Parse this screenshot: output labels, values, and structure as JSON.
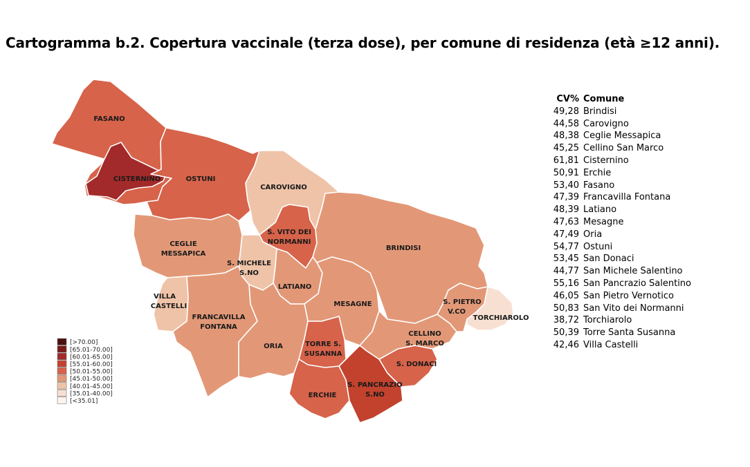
{
  "title": "Cartogramma b.2. Copertura vaccinale (terza dose), per comune di residenza (età ≥12 anni).",
  "table": {
    "header": {
      "cv": "CV%",
      "comune": "Comune"
    },
    "rows": [
      {
        "cv": "49,28",
        "comune": "Brindisi"
      },
      {
        "cv": "44,58",
        "comune": "Carovigno"
      },
      {
        "cv": "48,38",
        "comune": "Ceglie Messapica"
      },
      {
        "cv": "45,25",
        "comune": "Cellino San Marco"
      },
      {
        "cv": "61,81",
        "comune": "Cisternino"
      },
      {
        "cv": "50,91",
        "comune": "Erchie"
      },
      {
        "cv": "53,40",
        "comune": "Fasano"
      },
      {
        "cv": "47,39",
        "comune": "Francavilla Fontana"
      },
      {
        "cv": "48,39",
        "comune": "Latiano"
      },
      {
        "cv": "47,63",
        "comune": "Mesagne"
      },
      {
        "cv": "47,49",
        "comune": "Oria"
      },
      {
        "cv": "54,77",
        "comune": "Ostuni"
      },
      {
        "cv": "53,45",
        "comune": "San Donaci"
      },
      {
        "cv": "44,77",
        "comune": "San Michele Salentino"
      },
      {
        "cv": "55,16",
        "comune": "San Pancrazio Salentino"
      },
      {
        "cv": "46,05",
        "comune": "San Pietro Vernotico"
      },
      {
        "cv": "50,83",
        "comune": "San Vito dei Normanni"
      },
      {
        "cv": "38,72",
        "comune": "Torchiarolo"
      },
      {
        "cv": "50,39",
        "comune": "Torre Santa Susanna"
      },
      {
        "cv": "42,46",
        "comune": "Villa Castelli"
      }
    ]
  },
  "legend": [
    {
      "label": "[>70.00]",
      "color": "#4a1010"
    },
    {
      "label": "[65.01-70.00]",
      "color": "#7a1a1a"
    },
    {
      "label": "[60.01-65.00]",
      "color": "#a32a2a"
    },
    {
      "label": "[55.01-60.00]",
      "color": "#c2422e"
    },
    {
      "label": "[50.01-55.00]",
      "color": "#d6634a"
    },
    {
      "label": "[45.01-50.00]",
      "color": "#e29877"
    },
    {
      "label": "[40.01-45.00]",
      "color": "#efc3a8"
    },
    {
      "label": "[35.01-40.00]",
      "color": "#f7e0d2"
    },
    {
      "label": "[<35.01]",
      "color": "#fdf4ee"
    }
  ],
  "regions": {
    "fasano": {
      "label": "FASANO",
      "cv": 53.4,
      "color": "#d6634a"
    },
    "cisternino": {
      "label": "CISTERNINO",
      "cv": 61.81,
      "color": "#a32a2a"
    },
    "ostuni": {
      "label": "OSTUNI",
      "cv": 54.77,
      "color": "#d6634a"
    },
    "carovigno": {
      "label": "CAROVIGNO",
      "cv": 44.58,
      "color": "#efc3a8"
    },
    "san_vito": {
      "label1": "S. VITO DEI",
      "label2": "NORMANNI",
      "cv": 50.83,
      "color": "#d6634a"
    },
    "brindisi": {
      "label": "BRINDISI",
      "cv": 49.28,
      "color": "#e29877"
    },
    "ceglie": {
      "label1": "CEGLIE",
      "label2": "MESSAPICA",
      "cv": 48.38,
      "color": "#e29877"
    },
    "san_michele": {
      "label1": "S. MICHELE",
      "label2": "S.NO",
      "cv": 44.77,
      "color": "#efc3a8"
    },
    "latiano": {
      "label": "LATIANO",
      "cv": 48.39,
      "color": "#e29877"
    },
    "mesagne": {
      "label": "MESAGNE",
      "cv": 47.63,
      "color": "#e29877"
    },
    "villa_castelli": {
      "label1": "VILLA",
      "label2": "CASTELLI",
      "cv": 42.46,
      "color": "#efc3a8"
    },
    "francavilla": {
      "label1": "FRANCAVILLA",
      "label2": "FONTANA",
      "cv": 47.39,
      "color": "#e29877"
    },
    "oria": {
      "label": "ORIA",
      "cv": 47.49,
      "color": "#e29877"
    },
    "torre_susanna": {
      "label1": "TORRE S.",
      "label2": "SUSANNA",
      "cv": 50.39,
      "color": "#d6634a"
    },
    "erchie": {
      "label": "ERCHIE",
      "cv": 50.91,
      "color": "#d6634a"
    },
    "san_pancrazio": {
      "label1": "S. PANCRAZIO",
      "label2": "S.NO",
      "cv": 55.16,
      "color": "#c2422e"
    },
    "san_donaci": {
      "label": "S. DONACI",
      "cv": 53.45,
      "color": "#d6634a"
    },
    "cellino": {
      "label1": "CELLINO",
      "label2": "S. MARCO",
      "cv": 45.25,
      "color": "#e29877"
    },
    "san_pietro": {
      "label1": "S. PIETRO",
      "label2": "V.CO",
      "cv": 46.05,
      "color": "#e29877"
    },
    "torchiarolo": {
      "label": "TORCHIAROLO",
      "cv": 38.72,
      "color": "#f7e0d2"
    }
  }
}
